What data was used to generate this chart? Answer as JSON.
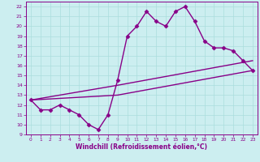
{
  "xlabel": "Windchill (Refroidissement éolien,°C)",
  "bg_color": "#cceef0",
  "grid_color": "#aadddd",
  "line_color": "#880088",
  "xlim": [
    -0.5,
    23.5
  ],
  "ylim": [
    9,
    22.5
  ],
  "xticks": [
    0,
    1,
    2,
    3,
    4,
    5,
    6,
    7,
    8,
    9,
    10,
    11,
    12,
    13,
    14,
    15,
    16,
    17,
    18,
    19,
    20,
    21,
    22,
    23
  ],
  "yticks": [
    9,
    10,
    11,
    12,
    13,
    14,
    15,
    16,
    17,
    18,
    19,
    20,
    21,
    22
  ],
  "series1_x": [
    0,
    1,
    2,
    3,
    4,
    5,
    6,
    7,
    8,
    9,
    10,
    11,
    12,
    13,
    14,
    15,
    16,
    17,
    18,
    19,
    20,
    21,
    22,
    23
  ],
  "series1_y": [
    12.5,
    11.5,
    11.5,
    12.0,
    11.5,
    11.0,
    10.0,
    9.5,
    11.0,
    14.5,
    19.0,
    20.0,
    21.5,
    20.5,
    20.0,
    21.5,
    22.0,
    20.5,
    18.5,
    17.8,
    17.8,
    17.5,
    16.5,
    15.5
  ],
  "series2_x": [
    0,
    9,
    23
  ],
  "series2_y": [
    12.5,
    14.0,
    16.5
  ],
  "series3_x": [
    0,
    9,
    23
  ],
  "series3_y": [
    12.5,
    13.0,
    15.5
  ],
  "marker": "D",
  "marker_size": 2.5,
  "line_width": 1.0
}
